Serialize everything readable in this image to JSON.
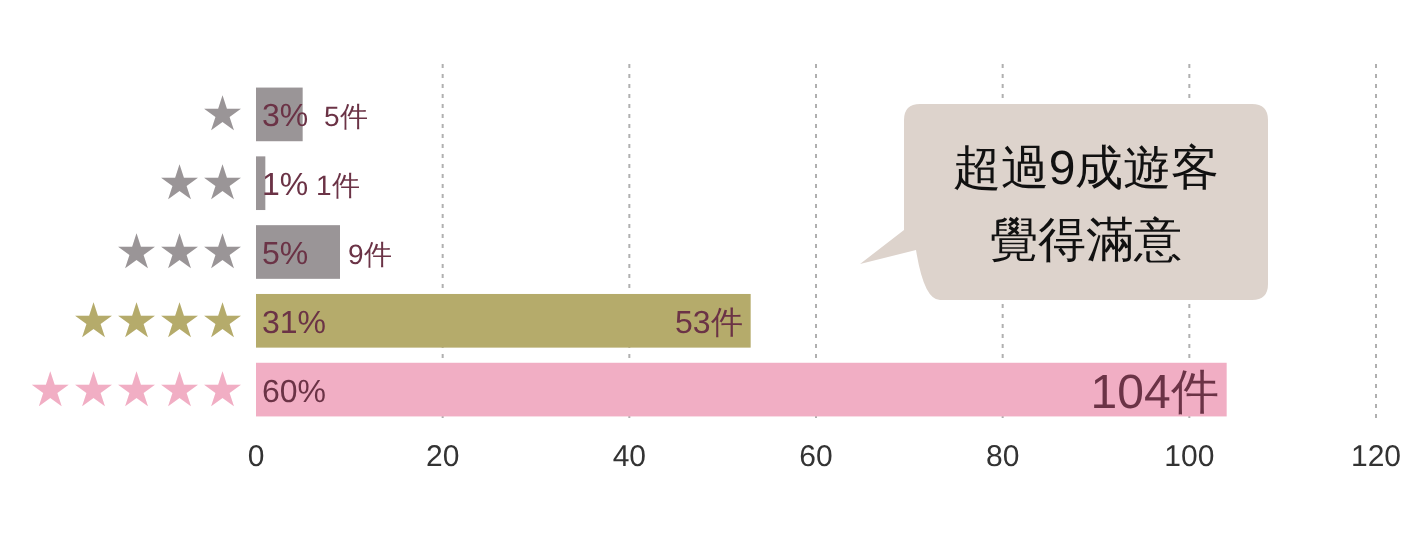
{
  "chart_data": {
    "type": "bar",
    "orientation": "horizontal",
    "categories": [
      "★",
      "★★",
      "★★★",
      "★★★★",
      "★★★★★"
    ],
    "values": [
      5,
      1,
      9,
      53,
      104
    ],
    "colors": [
      "#9a9597",
      "#9a9597",
      "#9a9597",
      "#b5ab6b",
      "#f1aec4"
    ],
    "value_labels": [
      "5件",
      "1件",
      "9件",
      "53件",
      "104件"
    ],
    "xlim": [
      0,
      120
    ],
    "xticks": [
      0,
      20,
      40,
      60,
      80,
      100,
      120
    ],
    "grid": "x",
    "annotations": [
      "3%",
      "1%",
      "5%",
      "31%",
      "60%",
      "超過9成遊客覺得滿意"
    ]
  }
}
